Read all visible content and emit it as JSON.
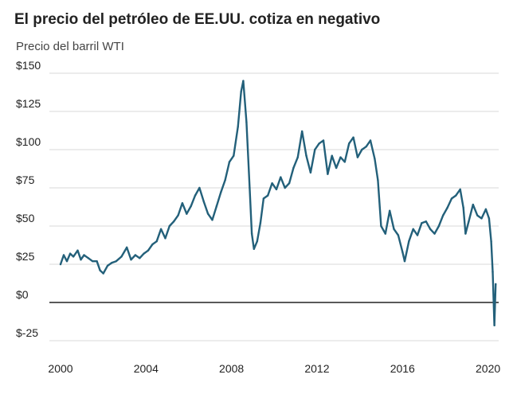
{
  "title": "El precio del petróleo de EE.UU. cotiza en negativo",
  "subtitle": "Precio del barril WTI",
  "colors": {
    "line": "#23607a",
    "grid": "#d9d9d9",
    "zero_line": "#222222",
    "text": "#222222"
  },
  "chart_data": {
    "type": "line",
    "title": "El precio del petróleo de EE.UU. cotiza en negativo",
    "subtitle": "Precio del barril WTI",
    "xlabel": "",
    "ylabel": "",
    "xlim": [
      2000,
      2020.5
    ],
    "ylim": [
      -25,
      150
    ],
    "grid": true,
    "legend": "none",
    "x_ticks": [
      2000,
      2004,
      2008,
      2012,
      2016,
      2020
    ],
    "x_tick_labels": [
      "2000",
      "2004",
      "2008",
      "2012",
      "2016",
      "2020"
    ],
    "y_ticks": [
      -25,
      0,
      25,
      50,
      75,
      100,
      125,
      150
    ],
    "y_tick_labels": [
      "$-25",
      "$0",
      "$25",
      "$50",
      "$75",
      "$100",
      "$125",
      "$150"
    ],
    "series": [
      {
        "values": [
          {
            "x": 2000.0,
            "y": 25
          },
          {
            "x": 2000.15,
            "y": 31
          },
          {
            "x": 2000.3,
            "y": 27
          },
          {
            "x": 2000.45,
            "y": 32
          },
          {
            "x": 2000.6,
            "y": 30
          },
          {
            "x": 2000.8,
            "y": 34
          },
          {
            "x": 2000.95,
            "y": 28
          },
          {
            "x": 2001.1,
            "y": 31
          },
          {
            "x": 2001.3,
            "y": 29
          },
          {
            "x": 2001.5,
            "y": 27
          },
          {
            "x": 2001.7,
            "y": 27
          },
          {
            "x": 2001.85,
            "y": 21
          },
          {
            "x": 2002.0,
            "y": 19
          },
          {
            "x": 2002.2,
            "y": 24
          },
          {
            "x": 2002.4,
            "y": 26
          },
          {
            "x": 2002.6,
            "y": 27
          },
          {
            "x": 2002.85,
            "y": 30
          },
          {
            "x": 2003.1,
            "y": 36
          },
          {
            "x": 2003.3,
            "y": 28
          },
          {
            "x": 2003.5,
            "y": 31
          },
          {
            "x": 2003.7,
            "y": 29
          },
          {
            "x": 2003.9,
            "y": 32
          },
          {
            "x": 2004.1,
            "y": 34
          },
          {
            "x": 2004.3,
            "y": 38
          },
          {
            "x": 2004.5,
            "y": 40
          },
          {
            "x": 2004.7,
            "y": 48
          },
          {
            "x": 2004.9,
            "y": 42
          },
          {
            "x": 2005.1,
            "y": 50
          },
          {
            "x": 2005.3,
            "y": 53
          },
          {
            "x": 2005.5,
            "y": 57
          },
          {
            "x": 2005.7,
            "y": 65
          },
          {
            "x": 2005.9,
            "y": 58
          },
          {
            "x": 2006.1,
            "y": 63
          },
          {
            "x": 2006.3,
            "y": 70
          },
          {
            "x": 2006.5,
            "y": 75
          },
          {
            "x": 2006.7,
            "y": 66
          },
          {
            "x": 2006.9,
            "y": 58
          },
          {
            "x": 2007.1,
            "y": 54
          },
          {
            "x": 2007.3,
            "y": 63
          },
          {
            "x": 2007.5,
            "y": 72
          },
          {
            "x": 2007.7,
            "y": 80
          },
          {
            "x": 2007.9,
            "y": 92
          },
          {
            "x": 2008.1,
            "y": 96
          },
          {
            "x": 2008.3,
            "y": 115
          },
          {
            "x": 2008.45,
            "y": 138
          },
          {
            "x": 2008.55,
            "y": 145
          },
          {
            "x": 2008.7,
            "y": 118
          },
          {
            "x": 2008.85,
            "y": 75
          },
          {
            "x": 2008.95,
            "y": 45
          },
          {
            "x": 2009.05,
            "y": 35
          },
          {
            "x": 2009.2,
            "y": 40
          },
          {
            "x": 2009.35,
            "y": 52
          },
          {
            "x": 2009.5,
            "y": 68
          },
          {
            "x": 2009.7,
            "y": 70
          },
          {
            "x": 2009.9,
            "y": 78
          },
          {
            "x": 2010.1,
            "y": 74
          },
          {
            "x": 2010.3,
            "y": 82
          },
          {
            "x": 2010.5,
            "y": 75
          },
          {
            "x": 2010.7,
            "y": 78
          },
          {
            "x": 2010.9,
            "y": 88
          },
          {
            "x": 2011.1,
            "y": 95
          },
          {
            "x": 2011.3,
            "y": 112
          },
          {
            "x": 2011.5,
            "y": 96
          },
          {
            "x": 2011.7,
            "y": 85
          },
          {
            "x": 2011.9,
            "y": 100
          },
          {
            "x": 2012.1,
            "y": 104
          },
          {
            "x": 2012.3,
            "y": 106
          },
          {
            "x": 2012.5,
            "y": 84
          },
          {
            "x": 2012.7,
            "y": 96
          },
          {
            "x": 2012.9,
            "y": 88
          },
          {
            "x": 2013.1,
            "y": 95
          },
          {
            "x": 2013.3,
            "y": 92
          },
          {
            "x": 2013.5,
            "y": 104
          },
          {
            "x": 2013.7,
            "y": 108
          },
          {
            "x": 2013.9,
            "y": 95
          },
          {
            "x": 2014.1,
            "y": 100
          },
          {
            "x": 2014.3,
            "y": 102
          },
          {
            "x": 2014.5,
            "y": 106
          },
          {
            "x": 2014.7,
            "y": 94
          },
          {
            "x": 2014.85,
            "y": 80
          },
          {
            "x": 2015.0,
            "y": 50
          },
          {
            "x": 2015.2,
            "y": 45
          },
          {
            "x": 2015.4,
            "y": 60
          },
          {
            "x": 2015.6,
            "y": 48
          },
          {
            "x": 2015.8,
            "y": 44
          },
          {
            "x": 2016.0,
            "y": 33
          },
          {
            "x": 2016.1,
            "y": 27
          },
          {
            "x": 2016.3,
            "y": 40
          },
          {
            "x": 2016.5,
            "y": 48
          },
          {
            "x": 2016.7,
            "y": 44
          },
          {
            "x": 2016.9,
            "y": 52
          },
          {
            "x": 2017.1,
            "y": 53
          },
          {
            "x": 2017.3,
            "y": 48
          },
          {
            "x": 2017.5,
            "y": 45
          },
          {
            "x": 2017.7,
            "y": 50
          },
          {
            "x": 2017.9,
            "y": 57
          },
          {
            "x": 2018.1,
            "y": 62
          },
          {
            "x": 2018.3,
            "y": 68
          },
          {
            "x": 2018.5,
            "y": 70
          },
          {
            "x": 2018.7,
            "y": 74
          },
          {
            "x": 2018.85,
            "y": 62
          },
          {
            "x": 2018.95,
            "y": 45
          },
          {
            "x": 2019.1,
            "y": 53
          },
          {
            "x": 2019.3,
            "y": 64
          },
          {
            "x": 2019.5,
            "y": 57
          },
          {
            "x": 2019.7,
            "y": 55
          },
          {
            "x": 2019.9,
            "y": 61
          },
          {
            "x": 2020.05,
            "y": 55
          },
          {
            "x": 2020.15,
            "y": 40
          },
          {
            "x": 2020.22,
            "y": 20
          },
          {
            "x": 2020.3,
            "y": -15
          },
          {
            "x": 2020.36,
            "y": 12
          }
        ]
      }
    ]
  }
}
